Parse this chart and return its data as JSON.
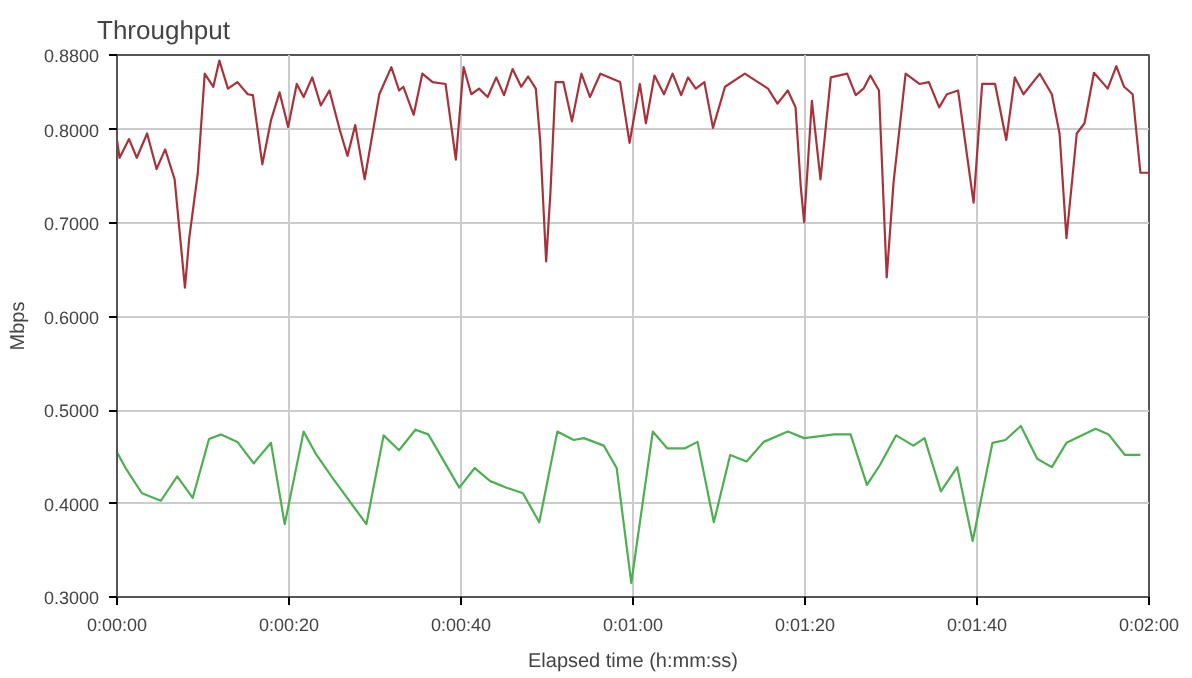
{
  "chart_data": {
    "type": "line",
    "title": "Throughput",
    "xlabel": "Elapsed time (h:mm:ss)",
    "ylabel": "Mbps",
    "xlim": [
      0,
      120
    ],
    "ylim": [
      0.3,
      0.88
    ],
    "xticks": [
      {
        "value": 0,
        "label": "0:00:00"
      },
      {
        "value": 20,
        "label": "0:00:20"
      },
      {
        "value": 40,
        "label": "0:00:40"
      },
      {
        "value": 60,
        "label": "0:01:00"
      },
      {
        "value": 80,
        "label": "0:01:20"
      },
      {
        "value": 100,
        "label": "0:01:40"
      },
      {
        "value": 120,
        "label": "0:02:00"
      }
    ],
    "yticks": [
      {
        "value": 0.3,
        "label": "0.3000"
      },
      {
        "value": 0.4,
        "label": "0.4000"
      },
      {
        "value": 0.5,
        "label": "0.5000"
      },
      {
        "value": 0.6,
        "label": "0.6000"
      },
      {
        "value": 0.7,
        "label": "0.7000"
      },
      {
        "value": 0.8,
        "label": "0.8000"
      },
      {
        "value": 0.88,
        "label": "0.8800"
      }
    ],
    "grid": true,
    "marker": "none",
    "line_style": "solid",
    "series": [
      {
        "color": "#a8323c",
        "x": [
          0,
          0.3,
          1.4,
          2.3,
          3.5,
          4.6,
          5.6,
          6.7,
          7.9,
          8.4,
          9.4,
          10.2,
          11.2,
          11.9,
          12.9,
          14,
          15.2,
          15.8,
          16.9,
          17.9,
          18.9,
          19.9,
          20.9,
          21.7,
          22.7,
          23.7,
          24.7,
          25.9,
          26.8,
          27.7,
          28.8,
          30.5,
          31.9,
          32.8,
          33.3,
          34.5,
          35.5,
          36.7,
          38.2,
          39.4,
          40.3,
          41.2,
          42.1,
          43.1,
          44.1,
          45,
          46,
          47,
          47.8,
          48.7,
          49.2,
          49.9,
          50.4,
          51,
          51.9,
          52.9,
          54,
          55,
          56.2,
          58.5,
          59.6,
          60.8,
          61.5,
          62.5,
          63.6,
          64.6,
          65.6,
          66.4,
          67.3,
          68.3,
          69.3,
          70.7,
          73,
          75.7,
          76.8,
          78,
          78.9,
          79.5,
          79.9,
          80.8,
          81.8,
          83,
          84.9,
          85.9,
          86.8,
          87.6,
          88.6,
          89.5,
          90.3,
          91.7,
          93.3,
          94.4,
          95.6,
          96.5,
          97.8,
          99.6,
          100.6,
          102.1,
          103.4,
          104.4,
          105.4,
          107.3,
          108.7,
          109.6,
          110.4,
          111.6,
          112.5,
          113.6,
          115.2,
          116.2,
          117.1,
          118.1,
          119,
          120
        ],
        "values": [
          0.789,
          0.77,
          0.79,
          0.77,
          0.796,
          0.758,
          0.779,
          0.747,
          0.631,
          0.684,
          0.754,
          0.86,
          0.846,
          0.874,
          0.844,
          0.851,
          0.838,
          0.837,
          0.763,
          0.81,
          0.84,
          0.803,
          0.849,
          0.835,
          0.856,
          0.826,
          0.842,
          0.8,
          0.772,
          0.805,
          0.747,
          0.838,
          0.867,
          0.842,
          0.846,
          0.816,
          0.86,
          0.851,
          0.849,
          0.768,
          0.867,
          0.838,
          0.844,
          0.835,
          0.856,
          0.837,
          0.865,
          0.846,
          0.857,
          0.844,
          0.789,
          0.659,
          0.733,
          0.851,
          0.851,
          0.809,
          0.86,
          0.835,
          0.86,
          0.851,
          0.786,
          0.849,
          0.807,
          0.858,
          0.838,
          0.86,
          0.837,
          0.856,
          0.844,
          0.851,
          0.802,
          0.846,
          0.86,
          0.844,
          0.828,
          0.842,
          0.824,
          0.74,
          0.701,
          0.831,
          0.747,
          0.856,
          0.86,
          0.837,
          0.844,
          0.858,
          0.842,
          0.642,
          0.744,
          0.86,
          0.849,
          0.851,
          0.824,
          0.838,
          0.842,
          0.722,
          0.849,
          0.849,
          0.789,
          0.856,
          0.838,
          0.86,
          0.838,
          0.796,
          0.684,
          0.796,
          0.807,
          0.861,
          0.844,
          0.868,
          0.846,
          0.838,
          0.754,
          0.754
        ]
      },
      {
        "color": "#4caf50",
        "x": [
          0,
          1,
          2.9,
          5.1,
          7,
          8.8,
          10.7,
          12.1,
          14,
          15.9,
          17.9,
          19.5,
          21.7,
          23.2,
          25.1,
          29,
          31,
          32.8,
          34.7,
          36.2,
          39.8,
          41.6,
          43.4,
          45.3,
          47.2,
          49.1,
          51.2,
          53.1,
          54.3,
          56.6,
          58.1,
          59.8,
          62.3,
          64,
          66,
          67.5,
          69.4,
          71.3,
          73.2,
          75.2,
          78,
          79.9,
          83.4,
          85.3,
          87.2,
          88.7,
          90.6,
          92.6,
          93.9,
          95.8,
          97.7,
          99.5,
          101.8,
          103.3,
          105.1,
          107,
          108.7,
          110.4,
          113.8,
          115.3,
          117.2,
          119
        ],
        "values": [
          0.455,
          0.438,
          0.411,
          0.403,
          0.429,
          0.406,
          0.469,
          0.474,
          0.466,
          0.443,
          0.465,
          0.378,
          0.477,
          0.452,
          0.427,
          0.378,
          0.473,
          0.457,
          0.479,
          0.474,
          0.417,
          0.438,
          0.424,
          0.417,
          0.411,
          0.38,
          0.477,
          0.468,
          0.47,
          0.462,
          0.438,
          0.315,
          0.477,
          0.459,
          0.459,
          0.466,
          0.38,
          0.452,
          0.445,
          0.466,
          0.477,
          0.47,
          0.474,
          0.474,
          0.42,
          0.441,
          0.473,
          0.462,
          0.47,
          0.413,
          0.439,
          0.36,
          0.465,
          0.468,
          0.483,
          0.448,
          0.439,
          0.465,
          0.48,
          0.474,
          0.452,
          0.452
        ]
      }
    ]
  }
}
